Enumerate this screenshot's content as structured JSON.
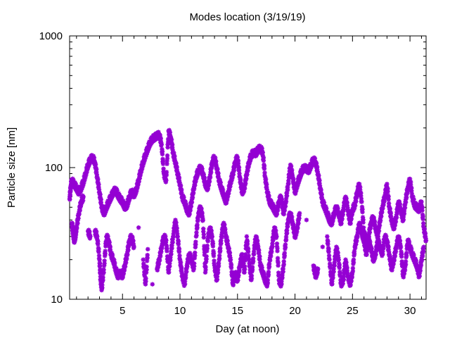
{
  "chart_data": {
    "type": "scatter",
    "title": "Modes location (3/19/19)",
    "xlabel": "Day (at noon)",
    "ylabel": "Particle size [nm]",
    "xlim": [
      0.4,
      31.4
    ],
    "ylim": [
      10,
      1000
    ],
    "y_scale": "log",
    "grid": false,
    "marker": "asterisk",
    "color": "#9400d3",
    "x_ticks": [
      {
        "value": 5,
        "label": "5"
      },
      {
        "value": 10,
        "label": "10"
      },
      {
        "value": 15,
        "label": "15"
      },
      {
        "value": 20,
        "label": "20"
      },
      {
        "value": 25,
        "label": "25"
      },
      {
        "value": 30,
        "label": "30"
      }
    ],
    "y_ticks": [
      {
        "value": 10,
        "label": "10"
      },
      {
        "value": 100,
        "label": "100"
      },
      {
        "value": 1000,
        "label": "1000"
      }
    ],
    "series": [
      {
        "points": [
          [
            0.4,
            58
          ],
          [
            0.5,
            72
          ],
          [
            0.6,
            80
          ],
          [
            0.8,
            75
          ],
          [
            1.0,
            70
          ],
          [
            1.2,
            65
          ],
          [
            1.4,
            70
          ],
          [
            1.6,
            78
          ],
          [
            1.8,
            90
          ],
          [
            2.0,
            105
          ],
          [
            2.2,
            115
          ],
          [
            2.4,
            120
          ],
          [
            2.6,
            110
          ],
          [
            2.8,
            85
          ],
          [
            3.0,
            65
          ],
          [
            3.2,
            50
          ],
          [
            3.4,
            45
          ],
          [
            3.6,
            50
          ],
          [
            3.8,
            55
          ],
          [
            4.0,
            60
          ],
          [
            4.2,
            65
          ],
          [
            4.4,
            68
          ],
          [
            4.6,
            62
          ],
          [
            4.8,
            58
          ],
          [
            5.0,
            55
          ],
          [
            5.2,
            50
          ],
          [
            5.4,
            52
          ],
          [
            5.6,
            60
          ],
          [
            5.8,
            66
          ],
          [
            6.0,
            62
          ],
          [
            6.2,
            68
          ],
          [
            6.4,
            80
          ],
          [
            6.6,
            95
          ],
          [
            6.8,
            110
          ],
          [
            7.0,
            125
          ],
          [
            7.2,
            140
          ],
          [
            7.4,
            155
          ],
          [
            7.6,
            165
          ],
          [
            7.8,
            170
          ],
          [
            8.0,
            175
          ],
          [
            8.2,
            178
          ],
          [
            8.4,
            150
          ],
          [
            8.6,
            90
          ],
          [
            8.8,
            80
          ],
          [
            9.0,
            190
          ],
          [
            9.2,
            170
          ],
          [
            9.4,
            130
          ],
          [
            9.6,
            110
          ],
          [
            9.8,
            90
          ],
          [
            10.0,
            75
          ],
          [
            10.2,
            60
          ],
          [
            10.4,
            55
          ],
          [
            10.6,
            48
          ],
          [
            10.8,
            45
          ],
          [
            11.0,
            55
          ],
          [
            11.2,
            70
          ],
          [
            11.4,
            85
          ],
          [
            11.6,
            95
          ],
          [
            11.8,
            100
          ],
          [
            12.0,
            90
          ],
          [
            12.2,
            75
          ],
          [
            12.4,
            70
          ],
          [
            12.6,
            85
          ],
          [
            12.8,
            110
          ],
          [
            13.0,
            120
          ],
          [
            13.2,
            100
          ],
          [
            13.4,
            80
          ],
          [
            13.6,
            70
          ],
          [
            13.8,
            62
          ],
          [
            14.0,
            55
          ],
          [
            14.2,
            65
          ],
          [
            14.4,
            78
          ],
          [
            14.6,
            90
          ],
          [
            14.8,
            110
          ],
          [
            15.0,
            120
          ],
          [
            15.2,
            85
          ],
          [
            15.4,
            65
          ],
          [
            15.6,
            70
          ],
          [
            15.8,
            90
          ],
          [
            16.0,
            110
          ],
          [
            16.2,
            125
          ],
          [
            16.4,
            130
          ],
          [
            16.6,
            128
          ],
          [
            16.8,
            138
          ],
          [
            17.0,
            140
          ],
          [
            17.2,
            130
          ],
          [
            17.4,
            85
          ],
          [
            17.6,
            65
          ],
          [
            17.8,
            55
          ],
          [
            18.0,
            52
          ],
          [
            18.2,
            48
          ],
          [
            18.4,
            45
          ],
          [
            18.6,
            55
          ],
          [
            18.8,
            60
          ],
          [
            19.0,
            45
          ],
          [
            19.2,
            55
          ],
          [
            19.4,
            75
          ],
          [
            19.6,
            105
          ],
          [
            19.8,
            85
          ],
          [
            20.0,
            65
          ],
          [
            20.2,
            75
          ],
          [
            20.4,
            85
          ],
          [
            20.6,
            95
          ],
          [
            20.8,
            100
          ],
          [
            21.0,
            98
          ],
          [
            21.2,
            95
          ],
          [
            21.4,
            105
          ],
          [
            21.6,
            115
          ],
          [
            21.8,
            110
          ],
          [
            22.0,
            90
          ],
          [
            22.2,
            70
          ],
          [
            22.4,
            55
          ],
          [
            22.6,
            50
          ],
          [
            22.8,
            45
          ],
          [
            23.0,
            40
          ],
          [
            23.2,
            38
          ],
          [
            23.4,
            45
          ],
          [
            23.6,
            50
          ],
          [
            23.8,
            45
          ],
          [
            24.0,
            38
          ],
          [
            24.2,
            48
          ],
          [
            24.4,
            60
          ],
          [
            24.6,
            48
          ],
          [
            24.8,
            38
          ],
          [
            25.0,
            48
          ],
          [
            25.2,
            52
          ],
          [
            25.4,
            65
          ],
          [
            25.6,
            75
          ],
          [
            25.8,
            55
          ],
          [
            26.0,
            32
          ],
          [
            26.2,
            28
          ],
          [
            26.4,
            30
          ],
          [
            26.6,
            38
          ],
          [
            26.8,
            42
          ],
          [
            27.0,
            35
          ],
          [
            27.2,
            30
          ],
          [
            27.4,
            40
          ],
          [
            27.6,
            50
          ],
          [
            27.8,
            60
          ],
          [
            28.0,
            75
          ],
          [
            28.2,
            50
          ],
          [
            28.4,
            40
          ],
          [
            28.6,
            35
          ],
          [
            28.8,
            42
          ],
          [
            29.0,
            55
          ],
          [
            29.2,
            48
          ],
          [
            29.4,
            40
          ],
          [
            29.6,
            55
          ],
          [
            29.8,
            70
          ],
          [
            30.0,
            82
          ],
          [
            30.2,
            60
          ],
          [
            30.4,
            52
          ],
          [
            30.6,
            50
          ],
          [
            30.8,
            48
          ],
          [
            31.0,
            55
          ],
          [
            31.2,
            35
          ],
          [
            31.4,
            28
          ],
          [
            0.6,
            38
          ],
          [
            0.7,
            32
          ],
          [
            0.8,
            28
          ],
          [
            0.9,
            30
          ],
          [
            1.0,
            35
          ],
          [
            1.2,
            45
          ],
          [
            1.4,
            55
          ],
          [
            1.6,
            60
          ],
          [
            2.0,
            33
          ],
          [
            2.2,
            30
          ],
          [
            2.6,
            33
          ],
          [
            2.8,
            30
          ],
          [
            3.0,
            20
          ],
          [
            3.1,
            14
          ],
          [
            3.2,
            12
          ],
          [
            3.4,
            18
          ],
          [
            3.6,
            30
          ],
          [
            3.8,
            28
          ],
          [
            4.0,
            22
          ],
          [
            4.2,
            20
          ],
          [
            4.4,
            17
          ],
          [
            4.6,
            15
          ],
          [
            4.8,
            16
          ],
          [
            5.0,
            15
          ],
          [
            5.2,
            18
          ],
          [
            5.4,
            22
          ],
          [
            5.6,
            28
          ],
          [
            5.8,
            30
          ],
          [
            6.0,
            25
          ],
          [
            6.4,
            35
          ],
          [
            6.8,
            20
          ],
          [
            7.0,
            13
          ],
          [
            7.2,
            24
          ],
          [
            7.6,
            13
          ],
          [
            8.0,
            17
          ],
          [
            8.2,
            20
          ],
          [
            8.4,
            25
          ],
          [
            8.6,
            30
          ],
          [
            8.8,
            28
          ],
          [
            9.0,
            16
          ],
          [
            9.2,
            22
          ],
          [
            9.4,
            30
          ],
          [
            9.6,
            40
          ],
          [
            9.8,
            30
          ],
          [
            10.0,
            20
          ],
          [
            10.2,
            15
          ],
          [
            10.4,
            13
          ],
          [
            10.6,
            18
          ],
          [
            10.8,
            22
          ],
          [
            11.0,
            20
          ],
          [
            11.2,
            17
          ],
          [
            11.4,
            30
          ],
          [
            11.6,
            45
          ],
          [
            11.8,
            50
          ],
          [
            12.0,
            40
          ],
          [
            12.2,
            16
          ],
          [
            12.4,
            28
          ],
          [
            12.6,
            35
          ],
          [
            12.8,
            30
          ],
          [
            13.0,
            18
          ],
          [
            13.2,
            14
          ],
          [
            13.4,
            20
          ],
          [
            13.6,
            30
          ],
          [
            13.8,
            38
          ],
          [
            14.0,
            30
          ],
          [
            14.2,
            25
          ],
          [
            14.4,
            20
          ],
          [
            14.6,
            13
          ],
          [
            14.8,
            16
          ],
          [
            15.0,
            14
          ],
          [
            15.2,
            18
          ],
          [
            15.4,
            22
          ],
          [
            15.6,
            16
          ],
          [
            15.8,
            30
          ],
          [
            16.0,
            20
          ],
          [
            16.2,
            14
          ],
          [
            16.4,
            22
          ],
          [
            16.6,
            30
          ],
          [
            16.8,
            25
          ],
          [
            17.0,
            18
          ],
          [
            17.2,
            16
          ],
          [
            17.4,
            14
          ],
          [
            17.6,
            13
          ],
          [
            17.8,
            20
          ],
          [
            18.0,
            25
          ],
          [
            18.2,
            35
          ],
          [
            18.4,
            30
          ],
          [
            18.6,
            14
          ],
          [
            18.8,
            13
          ],
          [
            19.0,
            18
          ],
          [
            19.2,
            28
          ],
          [
            19.4,
            40
          ],
          [
            19.6,
            45
          ],
          [
            19.8,
            38
          ],
          [
            20.0,
            30
          ],
          [
            20.2,
            35
          ],
          [
            20.4,
            45
          ],
          [
            21.0,
            40
          ],
          [
            21.6,
            18
          ],
          [
            21.8,
            15
          ],
          [
            22.0,
            17
          ],
          [
            22.4,
            25
          ],
          [
            22.8,
            30
          ],
          [
            23.0,
            20
          ],
          [
            23.2,
            13
          ],
          [
            23.4,
            18
          ],
          [
            23.6,
            25
          ],
          [
            23.8,
            20
          ],
          [
            24.0,
            13
          ],
          [
            24.2,
            14
          ],
          [
            24.4,
            20
          ],
          [
            24.6,
            15
          ],
          [
            24.8,
            13
          ],
          [
            25.0,
            16
          ],
          [
            25.2,
            25
          ],
          [
            25.4,
            30
          ],
          [
            25.6,
            38
          ],
          [
            25.8,
            32
          ],
          [
            26.0,
            28
          ],
          [
            26.2,
            22
          ],
          [
            26.4,
            28
          ],
          [
            26.6,
            25
          ],
          [
            26.8,
            20
          ],
          [
            27.0,
            22
          ],
          [
            27.2,
            28
          ],
          [
            27.4,
            25
          ],
          [
            27.6,
            22
          ],
          [
            27.8,
            30
          ],
          [
            28.0,
            28
          ],
          [
            28.2,
            22
          ],
          [
            28.4,
            17
          ],
          [
            28.6,
            20
          ],
          [
            28.8,
            25
          ],
          [
            29.0,
            30
          ],
          [
            29.2,
            25
          ],
          [
            29.4,
            15
          ],
          [
            29.6,
            18
          ],
          [
            29.8,
            28
          ],
          [
            30.0,
            25
          ],
          [
            30.2,
            22
          ],
          [
            30.4,
            20
          ],
          [
            30.6,
            18
          ],
          [
            30.8,
            15
          ],
          [
            31.0,
            20
          ],
          [
            31.2,
            25
          ]
        ]
      }
    ]
  }
}
